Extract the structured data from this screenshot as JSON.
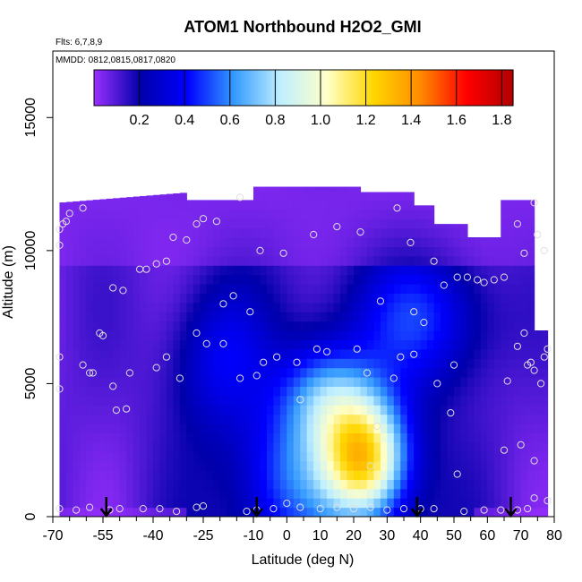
{
  "chart_data": {
    "type": "heatmap",
    "title": "ATOM1 Northbound H2O2_GMI",
    "annotations": [
      "Flts: 6,7,8,9",
      "MMDD: 0812,0815,0817,0820"
    ],
    "xlabel": "Latitude (deg N)",
    "ylabel": "Altitude (m)",
    "xlim": [
      -70,
      80
    ],
    "ylim": [
      0,
      17500
    ],
    "x_ticks": [
      -70,
      -55,
      -40,
      -25,
      -10,
      0,
      10,
      20,
      30,
      40,
      50,
      60,
      70,
      80
    ],
    "x_tick_labels": [
      "-70",
      "-55",
      "-40",
      "-25",
      "-10",
      "0",
      "10",
      "20",
      "30",
      "40",
      "50",
      "60",
      "70",
      "80"
    ],
    "x_minor_ticks": [
      -65,
      -60,
      -50,
      -45,
      -35,
      -30,
      -20,
      -15,
      -5,
      5,
      15,
      25,
      35,
      45,
      55,
      65,
      75
    ],
    "y_ticks": [
      0,
      5000,
      10000,
      15000
    ],
    "y_tick_labels": [
      "0",
      "5000",
      "10000",
      "15000"
    ],
    "colorbar": {
      "range": [
        0.0,
        1.85
      ],
      "ticks": [
        0.2,
        0.4,
        0.6,
        0.8,
        1.0,
        1.2,
        1.4,
        1.6,
        1.8
      ],
      "tick_labels": [
        "0.2",
        "0.4",
        "0.6",
        "0.8",
        "1.0",
        "1.2",
        "1.4",
        "1.6",
        "1.8"
      ],
      "colors": [
        "#9b30ff",
        "#0000aa",
        "#0000ff",
        "#3399ff",
        "#bfefff",
        "#ffffc8",
        "#ffd700",
        "#ff8c00",
        "#ff0000",
        "#b20000"
      ]
    },
    "field_centers": [
      {
        "lat": 23,
        "alt": 2200,
        "amp": 1.05,
        "sx": 9,
        "sy": 1600
      },
      {
        "lat": 12,
        "alt": 4500,
        "amp": 0.45,
        "sx": 10,
        "sy": 1400
      },
      {
        "lat": 40,
        "alt": 7500,
        "amp": 0.35,
        "sx": 14,
        "sy": 1800
      },
      {
        "lat": -20,
        "alt": 6000,
        "amp": 0.25,
        "sx": 10,
        "sy": 2000
      },
      {
        "lat": 0,
        "alt": 1500,
        "amp": 0.3,
        "sx": 10,
        "sy": 1800
      }
    ],
    "arrows_lat": [
      -54,
      -9,
      39,
      67
    ],
    "observations": [
      [
        -68,
        10800
      ],
      [
        -67,
        11000
      ],
      [
        -66,
        11100
      ],
      [
        -65,
        11400
      ],
      [
        -61,
        11600
      ],
      [
        -68,
        10200
      ],
      [
        -68,
        6000
      ],
      [
        -68,
        4800
      ],
      [
        -68,
        300
      ],
      [
        -63,
        250
      ],
      [
        -59,
        350
      ],
      [
        -53,
        250
      ],
      [
        -50,
        300
      ],
      [
        -61,
        5700
      ],
      [
        -59,
        5400
      ],
      [
        -58,
        5400
      ],
      [
        -56,
        6900
      ],
      [
        -55,
        6800
      ],
      [
        -52,
        4900
      ],
      [
        -51,
        4000
      ],
      [
        -48,
        4050
      ],
      [
        -47,
        5400
      ],
      [
        -52,
        8600
      ],
      [
        -49,
        8500
      ],
      [
        -44,
        9300
      ],
      [
        -42,
        9300
      ],
      [
        -39,
        9500
      ],
      [
        -36,
        9600
      ],
      [
        -34,
        10500
      ],
      [
        -30,
        10400
      ],
      [
        -27,
        11000
      ],
      [
        -25,
        11200
      ],
      [
        -21,
        11100
      ],
      [
        -14,
        12000
      ],
      [
        -8,
        10000
      ],
      [
        -1,
        9900
      ],
      [
        8,
        10600
      ],
      [
        15,
        10900
      ],
      [
        22,
        10700
      ],
      [
        33,
        11600
      ],
      [
        37,
        10300
      ],
      [
        -19,
        8000
      ],
      [
        -16,
        8300
      ],
      [
        -11,
        7700
      ],
      [
        -27,
        6900
      ],
      [
        -24,
        6500
      ],
      [
        -19,
        6500
      ],
      [
        -39,
        5600
      ],
      [
        -36,
        6000
      ],
      [
        -32,
        5200
      ],
      [
        -14,
        5200
      ],
      [
        -9,
        5300
      ],
      [
        -7,
        5800
      ],
      [
        -3,
        6000
      ],
      [
        3,
        5800
      ],
      [
        9,
        6300
      ],
      [
        12,
        6200
      ],
      [
        21,
        6300
      ],
      [
        28,
        8100
      ],
      [
        34,
        6000
      ],
      [
        38,
        7700
      ],
      [
        41,
        7300
      ],
      [
        44,
        9600
      ],
      [
        47,
        8700
      ],
      [
        51,
        9000
      ],
      [
        54,
        9000
      ],
      [
        57,
        8900
      ],
      [
        59,
        8800
      ],
      [
        62,
        8900
      ],
      [
        65,
        9000
      ],
      [
        69,
        11000
      ],
      [
        71,
        9900
      ],
      [
        74,
        11800
      ],
      [
        75,
        10600
      ],
      [
        77,
        10000
      ],
      [
        69,
        6400
      ],
      [
        71,
        6900
      ],
      [
        72,
        5700
      ],
      [
        73,
        5800
      ],
      [
        74,
        5500
      ],
      [
        76,
        5000
      ],
      [
        77,
        6000
      ],
      [
        78,
        6300
      ],
      [
        66,
        5100
      ],
      [
        70,
        2700
      ],
      [
        74,
        2100
      ],
      [
        74,
        700
      ],
      [
        72,
        300
      ],
      [
        78,
        600
      ],
      [
        65,
        2500
      ],
      [
        51,
        1600
      ],
      [
        49,
        3900
      ],
      [
        50,
        5700
      ],
      [
        45,
        5000
      ],
      [
        38,
        6100
      ],
      [
        24,
        5400
      ],
      [
        32,
        5200
      ],
      [
        27,
        3400
      ],
      [
        25,
        1900
      ],
      [
        4,
        4400
      ],
      [
        0,
        500
      ],
      [
        -4,
        300
      ],
      [
        -9,
        250
      ],
      [
        -12,
        200
      ],
      [
        -25,
        400
      ],
      [
        -27,
        350
      ],
      [
        -38,
        300
      ],
      [
        -43,
        300
      ],
      [
        -33,
        200
      ],
      [
        4,
        350
      ],
      [
        10,
        300
      ],
      [
        15,
        350
      ],
      [
        20,
        300
      ],
      [
        25,
        350
      ],
      [
        30,
        250
      ],
      [
        35,
        300
      ],
      [
        40,
        300
      ],
      [
        44,
        300
      ],
      [
        53,
        200
      ],
      [
        59,
        250
      ],
      [
        64,
        250
      ],
      [
        69,
        250
      ]
    ]
  }
}
